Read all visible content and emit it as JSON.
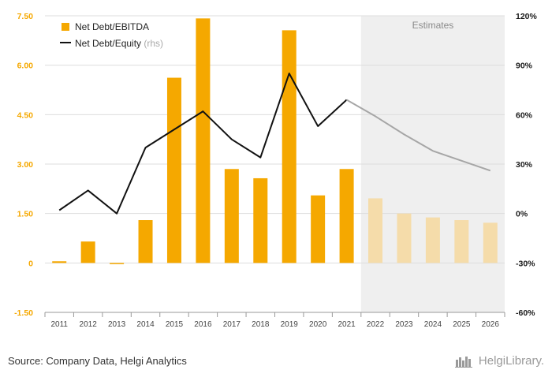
{
  "chart_data": {
    "type": "bar+line",
    "categories": [
      "2011",
      "2012",
      "2013",
      "2014",
      "2015",
      "2016",
      "2017",
      "2018",
      "2019",
      "2020",
      "2021",
      "2022",
      "2023",
      "2024",
      "2025",
      "2026"
    ],
    "estimate_start_index": 11,
    "estimates_label": "Estimates",
    "series": [
      {
        "name": "Net Debt/EBITDA",
        "type": "bar",
        "axis": "left",
        "color": "#f5a800",
        "estimate_color": "#f5dcaa",
        "values": [
          0.05,
          0.65,
          -0.03,
          1.3,
          5.62,
          7.42,
          2.85,
          2.57,
          7.06,
          2.05,
          2.85,
          1.96,
          1.5,
          1.38,
          1.3,
          1.22
        ]
      },
      {
        "name": "Net Debt/Equity",
        "name_suffix": "(rhs)",
        "type": "line",
        "axis": "right",
        "color": "#111111",
        "estimate_color": "#a6a6a6",
        "values": [
          2,
          14,
          0,
          40,
          51,
          62,
          45,
          34,
          85,
          53,
          69,
          59,
          48,
          38,
          32,
          26
        ]
      }
    ],
    "y_left": {
      "ticks": [
        "7.50",
        "6.00",
        "4.50",
        "3.00",
        "1.50",
        "0",
        "-1.50"
      ],
      "min": -1.5,
      "max": 7.5
    },
    "y_right": {
      "ticks": [
        "120%",
        "90%",
        "60%",
        "30%",
        "0%",
        "-30%",
        "-60%"
      ],
      "min": -60,
      "max": 120
    },
    "legend_position": "top-left",
    "grid": "horizontal"
  },
  "footer": {
    "source": "Source: Company Data, Helgi Analytics",
    "brand": "HelgiLibrary."
  }
}
